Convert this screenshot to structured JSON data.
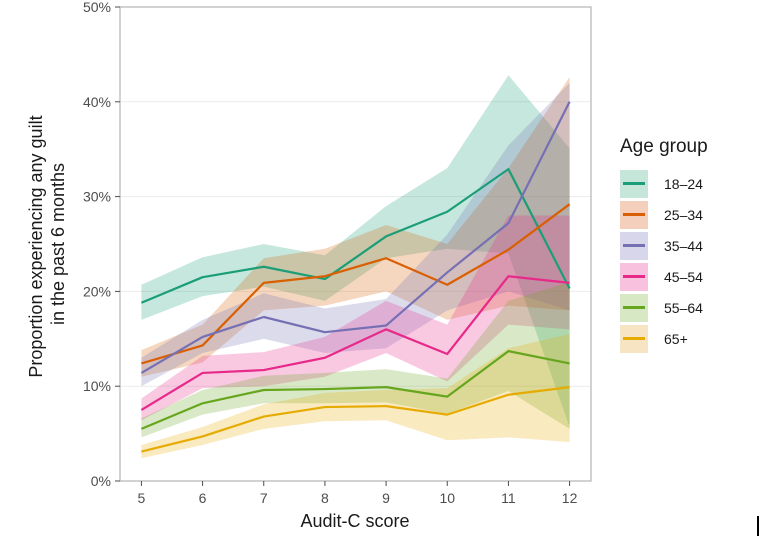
{
  "chart_data": {
    "type": "line",
    "title": "",
    "xlabel": "Audit-C score",
    "ylabel": "Proportion experiencing any guilt\nin the past 6 months",
    "ylabel_lines": [
      "Proportion experiencing any guilt",
      "in the past 6 months"
    ],
    "x": [
      5,
      6,
      7,
      8,
      9,
      10,
      11,
      12
    ],
    "xlim": [
      4.65,
      12.35
    ],
    "ylim": [
      0,
      50
    ],
    "x_ticks": [
      "5",
      "6",
      "7",
      "8",
      "9",
      "10",
      "11",
      "12"
    ],
    "y_ticks": [
      "0%",
      "10%",
      "20%",
      "30%",
      "40%",
      "50%"
    ],
    "y_tick_values": [
      0,
      10,
      20,
      30,
      40,
      50
    ],
    "grid": true,
    "legend_title": "Age group",
    "legend_position": "right",
    "series": [
      {
        "name": "18–24",
        "color": "#1B9E77",
        "fill": "#C6E6DA",
        "values": [
          18.8,
          21.5,
          22.6,
          21.3,
          25.8,
          28.4,
          32.9,
          20.3
        ],
        "lower": [
          17.0,
          19.5,
          20.5,
          19.0,
          23.5,
          24.5,
          24.0,
          5.7
        ],
        "upper": [
          20.7,
          23.6,
          25.0,
          23.8,
          29.0,
          33.0,
          42.8,
          35.1
        ]
      },
      {
        "name": "25–34",
        "color": "#D95F02",
        "fill": "#F4CFBC",
        "values": [
          12.4,
          14.3,
          20.9,
          21.6,
          23.5,
          20.7,
          24.4,
          29.2
        ],
        "lower": [
          11.0,
          12.5,
          18.0,
          18.5,
          20.0,
          17.0,
          18.5,
          18.0
        ],
        "upper": [
          13.8,
          16.5,
          23.5,
          24.5,
          27.0,
          25.0,
          33.0,
          42.6
        ]
      },
      {
        "name": "35–44",
        "color": "#7570B3",
        "fill": "#D8D6EA",
        "values": [
          11.4,
          15.2,
          17.3,
          15.7,
          16.4,
          22.0,
          27.2,
          40.0
        ],
        "lower": [
          10.0,
          13.5,
          15.0,
          13.5,
          14.0,
          18.0,
          20.0,
          18.0
        ],
        "upper": [
          13.0,
          17.0,
          19.8,
          18.2,
          19.2,
          26.0,
          35.4,
          42.0
        ]
      },
      {
        "name": "45–54",
        "color": "#E7298A",
        "fill": "#F8C2DE",
        "values": [
          7.5,
          11.4,
          11.7,
          13.0,
          16.0,
          13.4,
          21.6,
          20.9
        ],
        "lower": [
          6.4,
          9.8,
          10.0,
          11.0,
          13.5,
          10.5,
          16.5,
          16.0
        ],
        "upper": [
          8.7,
          13.2,
          13.6,
          15.2,
          19.0,
          16.5,
          28.0,
          28.0
        ]
      },
      {
        "name": "55–64",
        "color": "#66A61E",
        "fill": "#D6E8C4",
        "values": [
          5.5,
          8.2,
          9.6,
          9.7,
          9.9,
          8.9,
          13.7,
          12.4
        ],
        "lower": [
          4.6,
          7.0,
          8.2,
          8.2,
          8.3,
          7.1,
          9.5,
          5.5
        ],
        "upper": [
          6.6,
          9.6,
          11.1,
          11.4,
          11.8,
          10.8,
          19.0,
          21.0
        ]
      },
      {
        "name": "65+",
        "color": "#E6AB02",
        "fill": "#F6E4C2",
        "values": [
          3.1,
          4.7,
          6.8,
          7.8,
          7.9,
          7.0,
          9.1,
          9.9
        ],
        "lower": [
          2.4,
          3.8,
          5.5,
          6.3,
          6.4,
          4.3,
          4.6,
          4.1
        ],
        "upper": [
          3.8,
          5.7,
          8.1,
          9.3,
          9.6,
          9.8,
          14.0,
          15.5
        ]
      }
    ]
  }
}
